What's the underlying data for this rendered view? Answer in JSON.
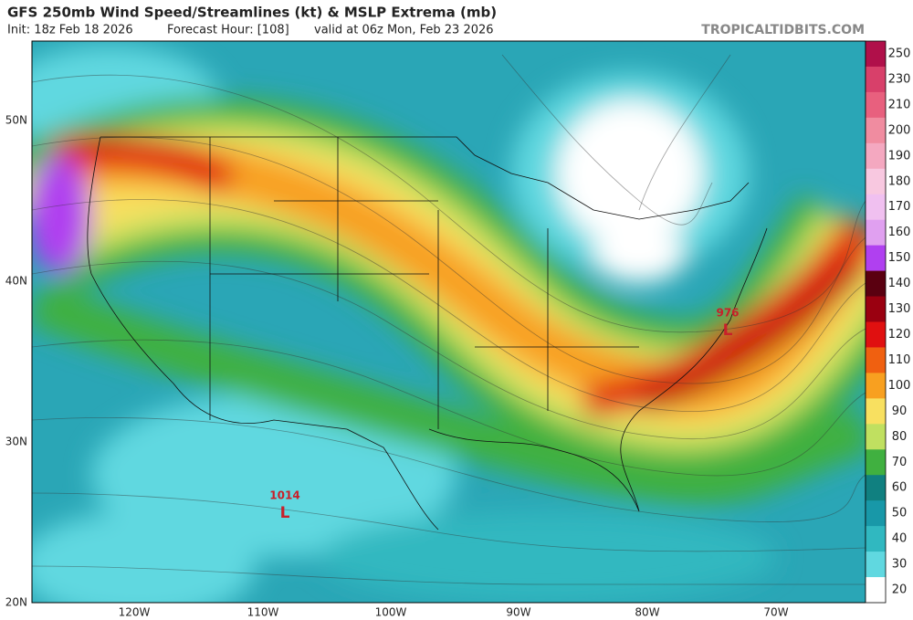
{
  "header": {
    "title": "GFS 250mb Wind Speed/Streamlines (kt) & MSLP Extrema (mb)",
    "init": "Init: 18z Feb 18 2026",
    "forecast_hour": "Forecast Hour: [108]",
    "valid": "valid at 06z Mon, Feb 23 2026",
    "site": "TROPICALTIDBITS.COM"
  },
  "latitude_labels": [
    "50N",
    "40N",
    "30N",
    "20N"
  ],
  "longitude_labels": [
    "120W",
    "110W",
    "100W",
    "90W",
    "80W",
    "70W"
  ],
  "pressure_labels": [
    {
      "value": "976",
      "symbol": "L"
    },
    {
      "value": "1014",
      "symbol": "L"
    }
  ],
  "colorbar": {
    "labels": [
      "250",
      "230",
      "210",
      "200",
      "190",
      "180",
      "170",
      "160",
      "150",
      "140",
      "130",
      "120",
      "110",
      "100",
      "90",
      "80",
      "70",
      "60",
      "50",
      "40",
      "30",
      "20"
    ],
    "colors": [
      "#b0104a",
      "#d8406a",
      "#e8607e",
      "#f08ca0",
      "#f4a8c0",
      "#f8c8e0",
      "#f0c0f0",
      "#e0a0f0",
      "#b040f0",
      "#5a0010",
      "#9a0010",
      "#e01010",
      "#f06010",
      "#f8a020",
      "#f8e060",
      "#c0e060",
      "#40b040",
      "#108080",
      "#1898a8",
      "#30b8c0",
      "#60d8e0",
      "#ffffff"
    ]
  }
}
